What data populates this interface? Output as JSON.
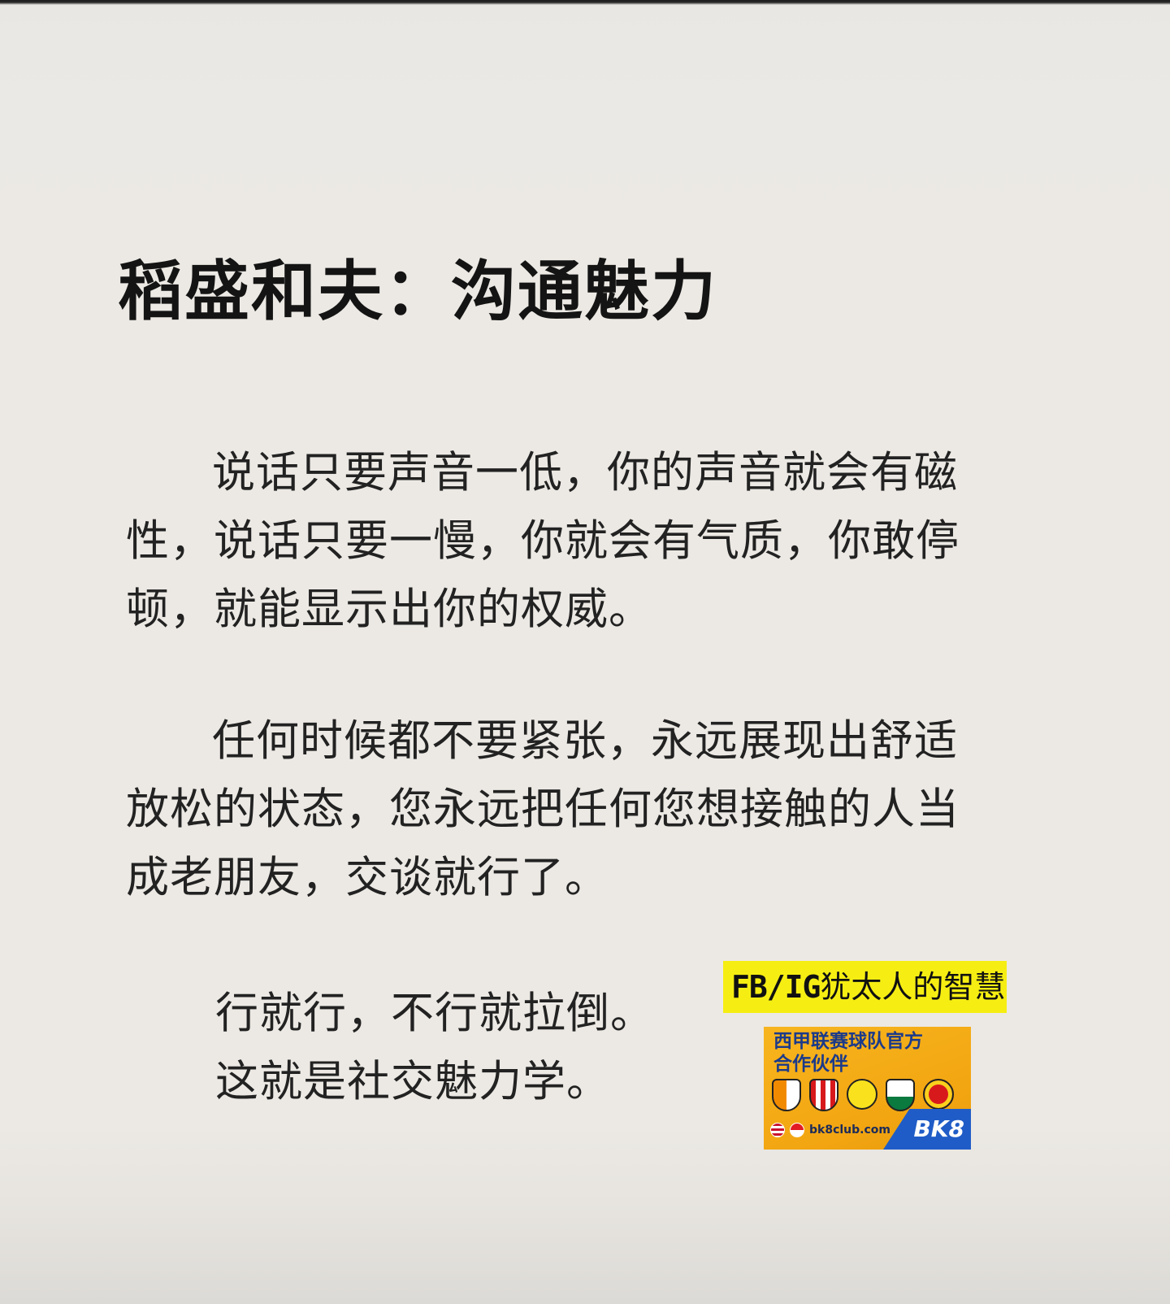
{
  "title": "稻盛和夫：沟通魅力",
  "paragraphs": [
    "说话只要声音一低，你的声音就会有磁性，说话只要一慢，你就会有气质，你敢停顿，就能显示出你的权威。",
    "任何时候都不要紧张，永远展现出舒适放松的状态，您永远把任何您想接触的人当成老朋友，交谈就行了。"
  ],
  "closing_lines": [
    "行就行，不行就拉倒。",
    "这就是社交魅力学。"
  ],
  "watermark": {
    "prefix": "FB/IG",
    "text": "犹太人的智慧",
    "background": "#f6ee12"
  },
  "ad": {
    "title_line1": "西甲联赛球队官方",
    "title_line2": "合作伙伴",
    "site": "bk8club.com",
    "brand": "BK8",
    "crests": [
      "valencia-crest-icon",
      "athletic-club-crest-icon",
      "villarreal-crest-icon",
      "elche-crest-icon",
      "mallorca-crest-icon"
    ],
    "flags": [
      "malaysia-flag-icon",
      "singapore-flag-icon"
    ],
    "background": "#f2a511",
    "accent": "#1f5cc7"
  }
}
